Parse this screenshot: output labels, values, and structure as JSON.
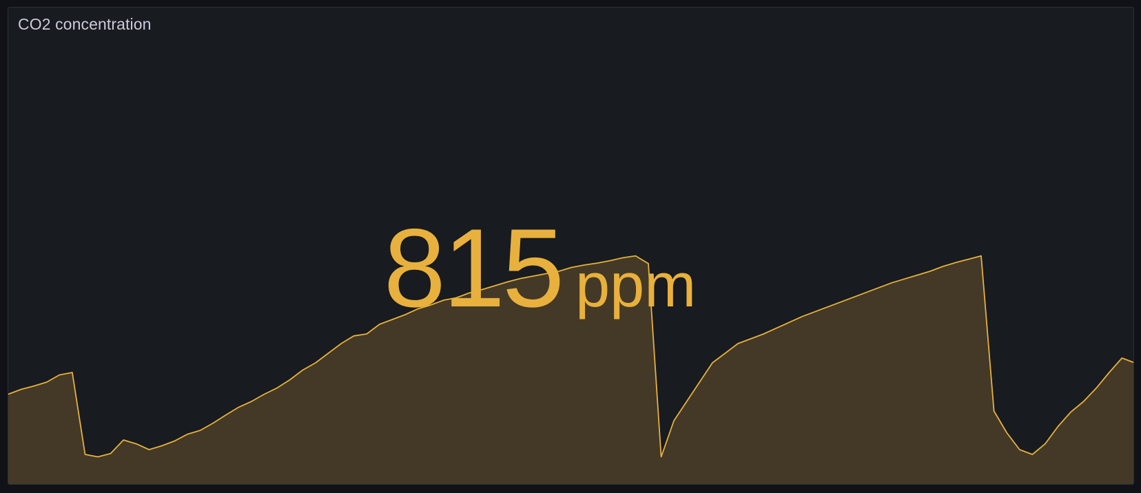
{
  "panel": {
    "title": "CO2 concentration"
  },
  "stat": {
    "value": "815",
    "unit": "ppm"
  },
  "colors": {
    "background": "#111217",
    "panel_bg": "#181b1f",
    "accent": "#e8b13d",
    "area_fill": "#433926"
  },
  "sparkline": {
    "series": [
      {
        "values": [
          535,
          545,
          552,
          560,
          575,
          580,
          410,
          405,
          412,
          440,
          432,
          420,
          428,
          438,
          452,
          460,
          475,
          492,
          508,
          520,
          535,
          548,
          565,
          585,
          600,
          620,
          640,
          656,
          660,
          680,
          690,
          700,
          712,
          720,
          730,
          735,
          745,
          752,
          760,
          768,
          775,
          780,
          785,
          790,
          798,
          803,
          807,
          812,
          818,
          822,
          806,
          405,
          480,
          520,
          560,
          600,
          620,
          640,
          650,
          660,
          672,
          684,
          696,
          706,
          716,
          726,
          736,
          746,
          756,
          766,
          774,
          782,
          790,
          800,
          808,
          815,
          822,
          500,
          455,
          420,
          410,
          432,
          468,
          498,
          520,
          548,
          580,
          610,
          600
        ]
      }
    ]
  }
}
